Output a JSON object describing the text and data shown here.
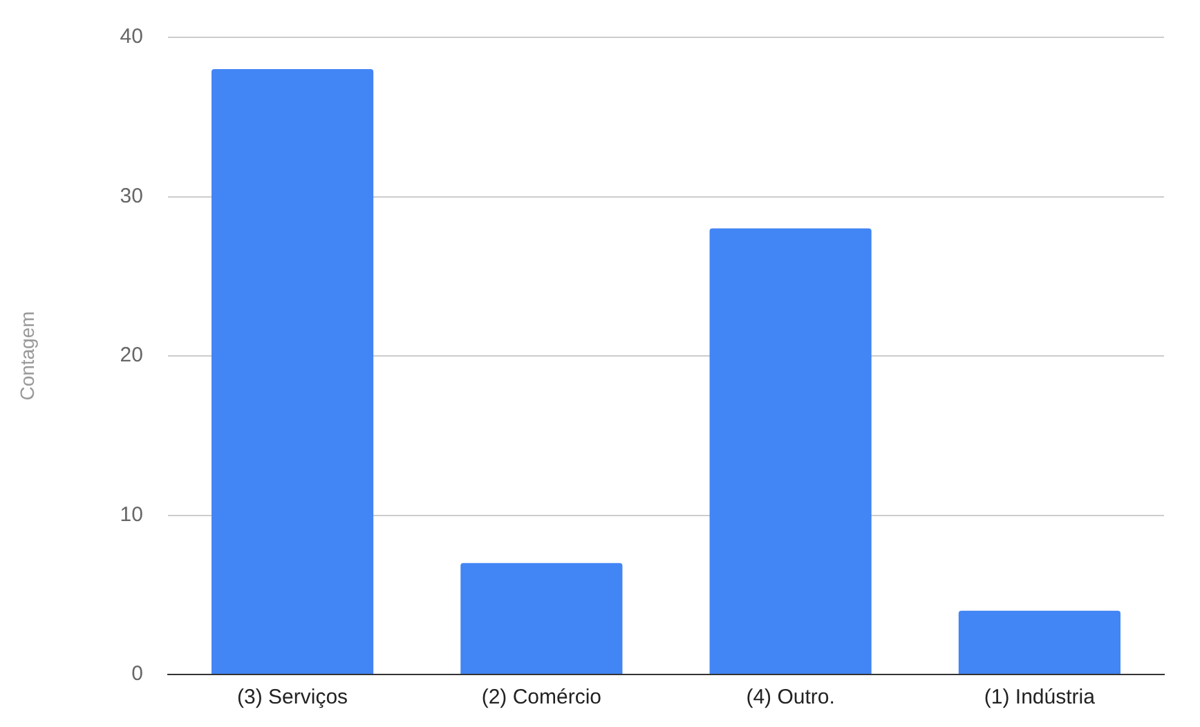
{
  "chart_data": {
    "type": "bar",
    "ylabel": "Contagem",
    "categories": [
      "(3) Serviços",
      "(2) Comércio",
      "(4) Outro.",
      "(1) Indústria"
    ],
    "values": [
      38,
      7,
      28,
      4
    ],
    "color": "#4285f4",
    "ylim": [
      0,
      40
    ],
    "yticks": [
      0,
      10,
      20,
      30,
      40
    ],
    "grid": "y"
  }
}
